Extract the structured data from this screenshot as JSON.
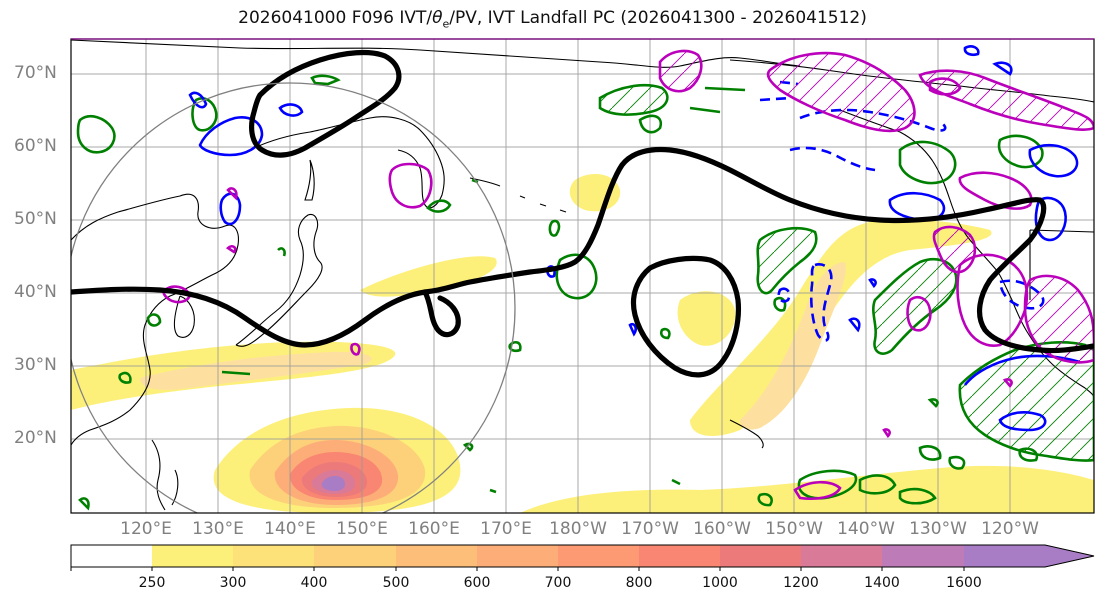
{
  "title": "2026041000 F096 IVT/θe/PV, IVT Landfall PC (2026041300 - 2026041512)",
  "title_parts": {
    "prefix": "2026041000 F096 IVT/",
    "theta": "θ",
    "sub": "e",
    "suffix": "/PV, IVT Landfall PC (2026041300 - 2026041512)"
  },
  "lat_labels": [
    "70°N",
    "60°N",
    "50°N",
    "40°N",
    "30°N",
    "20°N"
  ],
  "lon_labels": [
    "120°E",
    "130°E",
    "140°E",
    "150°E",
    "160°E",
    "170°E",
    "180°W",
    "170°W",
    "160°W",
    "150°W",
    "140°W",
    "130°W",
    "120°W"
  ],
  "colorbar": {
    "levels": [
      "250",
      "300",
      "400",
      "500",
      "600",
      "700",
      "800",
      "1000",
      "1200",
      "1400",
      "1600"
    ],
    "colors": [
      "#ffffff",
      "#fdf07a",
      "#fde27a",
      "#fdd07a",
      "#fdbe7a",
      "#fdae78",
      "#fd9a74",
      "#f98672",
      "#ec7a7a",
      "#d87a98",
      "#bd7cb8",
      "#a97cc6",
      "#a97cc6"
    ]
  },
  "contour_colors": {
    "pv_line": "#000000",
    "theta_e_pos": "#008000",
    "theta_e_neg": "#0000ff",
    "landfall_pc": "#bb00bb",
    "range_circle": "#808080"
  }
}
